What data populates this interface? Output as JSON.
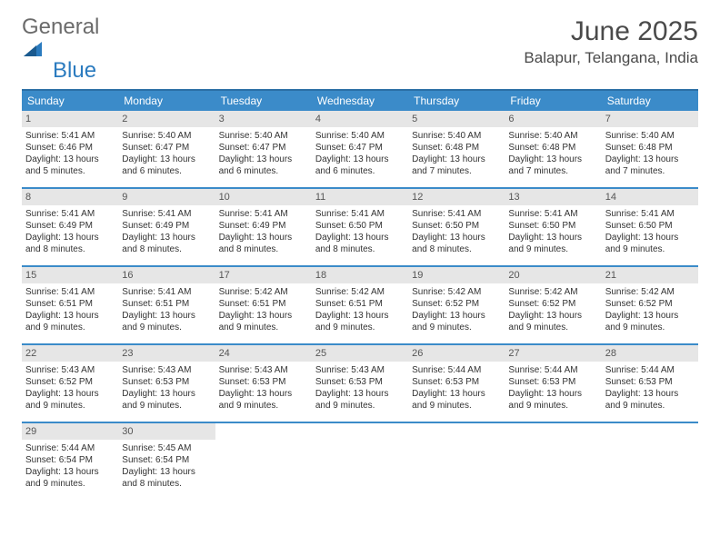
{
  "logo": {
    "word1": "General",
    "word2": "Blue"
  },
  "header": {
    "month_title": "June 2025",
    "location": "Balapur, Telangana, India"
  },
  "colors": {
    "header_bg": "#3b8bc9",
    "header_border": "#2b6fa5",
    "week_border": "#3b8bc9",
    "daynum_bg": "#e6e6e6",
    "text": "#333333",
    "logo_gray": "#6b6b6b",
    "logo_blue": "#2b7bbf"
  },
  "day_names": [
    "Sunday",
    "Monday",
    "Tuesday",
    "Wednesday",
    "Thursday",
    "Friday",
    "Saturday"
  ],
  "weeks": [
    [
      {
        "day": "1",
        "sunrise": "Sunrise: 5:41 AM",
        "sunset": "Sunset: 6:46 PM",
        "daylight1": "Daylight: 13 hours",
        "daylight2": "and 5 minutes."
      },
      {
        "day": "2",
        "sunrise": "Sunrise: 5:40 AM",
        "sunset": "Sunset: 6:47 PM",
        "daylight1": "Daylight: 13 hours",
        "daylight2": "and 6 minutes."
      },
      {
        "day": "3",
        "sunrise": "Sunrise: 5:40 AM",
        "sunset": "Sunset: 6:47 PM",
        "daylight1": "Daylight: 13 hours",
        "daylight2": "and 6 minutes."
      },
      {
        "day": "4",
        "sunrise": "Sunrise: 5:40 AM",
        "sunset": "Sunset: 6:47 PM",
        "daylight1": "Daylight: 13 hours",
        "daylight2": "and 6 minutes."
      },
      {
        "day": "5",
        "sunrise": "Sunrise: 5:40 AM",
        "sunset": "Sunset: 6:48 PM",
        "daylight1": "Daylight: 13 hours",
        "daylight2": "and 7 minutes."
      },
      {
        "day": "6",
        "sunrise": "Sunrise: 5:40 AM",
        "sunset": "Sunset: 6:48 PM",
        "daylight1": "Daylight: 13 hours",
        "daylight2": "and 7 minutes."
      },
      {
        "day": "7",
        "sunrise": "Sunrise: 5:40 AM",
        "sunset": "Sunset: 6:48 PM",
        "daylight1": "Daylight: 13 hours",
        "daylight2": "and 7 minutes."
      }
    ],
    [
      {
        "day": "8",
        "sunrise": "Sunrise: 5:41 AM",
        "sunset": "Sunset: 6:49 PM",
        "daylight1": "Daylight: 13 hours",
        "daylight2": "and 8 minutes."
      },
      {
        "day": "9",
        "sunrise": "Sunrise: 5:41 AM",
        "sunset": "Sunset: 6:49 PM",
        "daylight1": "Daylight: 13 hours",
        "daylight2": "and 8 minutes."
      },
      {
        "day": "10",
        "sunrise": "Sunrise: 5:41 AM",
        "sunset": "Sunset: 6:49 PM",
        "daylight1": "Daylight: 13 hours",
        "daylight2": "and 8 minutes."
      },
      {
        "day": "11",
        "sunrise": "Sunrise: 5:41 AM",
        "sunset": "Sunset: 6:50 PM",
        "daylight1": "Daylight: 13 hours",
        "daylight2": "and 8 minutes."
      },
      {
        "day": "12",
        "sunrise": "Sunrise: 5:41 AM",
        "sunset": "Sunset: 6:50 PM",
        "daylight1": "Daylight: 13 hours",
        "daylight2": "and 8 minutes."
      },
      {
        "day": "13",
        "sunrise": "Sunrise: 5:41 AM",
        "sunset": "Sunset: 6:50 PM",
        "daylight1": "Daylight: 13 hours",
        "daylight2": "and 9 minutes."
      },
      {
        "day": "14",
        "sunrise": "Sunrise: 5:41 AM",
        "sunset": "Sunset: 6:50 PM",
        "daylight1": "Daylight: 13 hours",
        "daylight2": "and 9 minutes."
      }
    ],
    [
      {
        "day": "15",
        "sunrise": "Sunrise: 5:41 AM",
        "sunset": "Sunset: 6:51 PM",
        "daylight1": "Daylight: 13 hours",
        "daylight2": "and 9 minutes."
      },
      {
        "day": "16",
        "sunrise": "Sunrise: 5:41 AM",
        "sunset": "Sunset: 6:51 PM",
        "daylight1": "Daylight: 13 hours",
        "daylight2": "and 9 minutes."
      },
      {
        "day": "17",
        "sunrise": "Sunrise: 5:42 AM",
        "sunset": "Sunset: 6:51 PM",
        "daylight1": "Daylight: 13 hours",
        "daylight2": "and 9 minutes."
      },
      {
        "day": "18",
        "sunrise": "Sunrise: 5:42 AM",
        "sunset": "Sunset: 6:51 PM",
        "daylight1": "Daylight: 13 hours",
        "daylight2": "and 9 minutes."
      },
      {
        "day": "19",
        "sunrise": "Sunrise: 5:42 AM",
        "sunset": "Sunset: 6:52 PM",
        "daylight1": "Daylight: 13 hours",
        "daylight2": "and 9 minutes."
      },
      {
        "day": "20",
        "sunrise": "Sunrise: 5:42 AM",
        "sunset": "Sunset: 6:52 PM",
        "daylight1": "Daylight: 13 hours",
        "daylight2": "and 9 minutes."
      },
      {
        "day": "21",
        "sunrise": "Sunrise: 5:42 AM",
        "sunset": "Sunset: 6:52 PM",
        "daylight1": "Daylight: 13 hours",
        "daylight2": "and 9 minutes."
      }
    ],
    [
      {
        "day": "22",
        "sunrise": "Sunrise: 5:43 AM",
        "sunset": "Sunset: 6:52 PM",
        "daylight1": "Daylight: 13 hours",
        "daylight2": "and 9 minutes."
      },
      {
        "day": "23",
        "sunrise": "Sunrise: 5:43 AM",
        "sunset": "Sunset: 6:53 PM",
        "daylight1": "Daylight: 13 hours",
        "daylight2": "and 9 minutes."
      },
      {
        "day": "24",
        "sunrise": "Sunrise: 5:43 AM",
        "sunset": "Sunset: 6:53 PM",
        "daylight1": "Daylight: 13 hours",
        "daylight2": "and 9 minutes."
      },
      {
        "day": "25",
        "sunrise": "Sunrise: 5:43 AM",
        "sunset": "Sunset: 6:53 PM",
        "daylight1": "Daylight: 13 hours",
        "daylight2": "and 9 minutes."
      },
      {
        "day": "26",
        "sunrise": "Sunrise: 5:44 AM",
        "sunset": "Sunset: 6:53 PM",
        "daylight1": "Daylight: 13 hours",
        "daylight2": "and 9 minutes."
      },
      {
        "day": "27",
        "sunrise": "Sunrise: 5:44 AM",
        "sunset": "Sunset: 6:53 PM",
        "daylight1": "Daylight: 13 hours",
        "daylight2": "and 9 minutes."
      },
      {
        "day": "28",
        "sunrise": "Sunrise: 5:44 AM",
        "sunset": "Sunset: 6:53 PM",
        "daylight1": "Daylight: 13 hours",
        "daylight2": "and 9 minutes."
      }
    ],
    [
      {
        "day": "29",
        "sunrise": "Sunrise: 5:44 AM",
        "sunset": "Sunset: 6:54 PM",
        "daylight1": "Daylight: 13 hours",
        "daylight2": "and 9 minutes."
      },
      {
        "day": "30",
        "sunrise": "Sunrise: 5:45 AM",
        "sunset": "Sunset: 6:54 PM",
        "daylight1": "Daylight: 13 hours",
        "daylight2": "and 8 minutes."
      },
      null,
      null,
      null,
      null,
      null
    ]
  ]
}
